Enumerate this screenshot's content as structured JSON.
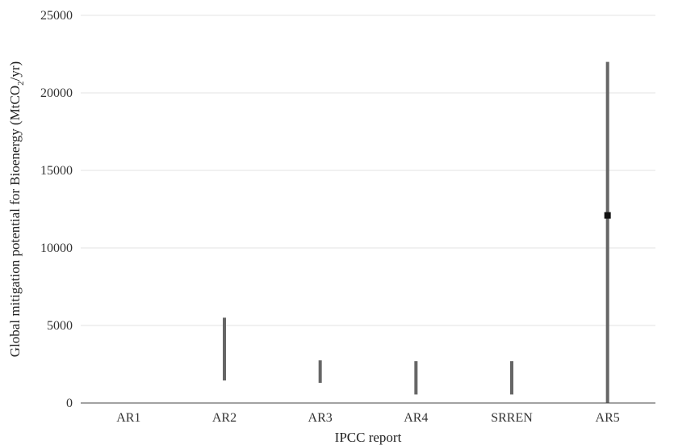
{
  "chart_data": {
    "type": "range",
    "categories": [
      "AR1",
      "AR2",
      "AR3",
      "AR4",
      "SRREN",
      "AR5"
    ],
    "series": [
      {
        "ranges": [
          null,
          [
            1450,
            5500
          ],
          [
            1300,
            2750
          ],
          [
            550,
            2700
          ],
          [
            550,
            2700
          ],
          [
            0,
            22000
          ]
        ],
        "points": [
          null,
          null,
          null,
          null,
          null,
          12100
        ]
      }
    ],
    "xlabel": "IPCC report",
    "ylabel": {
      "prefix": "Global mitigation potential for Bioenergy (MtCO",
      "subscript": "2",
      "suffix": "/yr)"
    },
    "ylim": [
      0,
      25000
    ],
    "yticks": [
      "0",
      "5000",
      "10000",
      "15000",
      "20000",
      "25000"
    ],
    "grid": "horizontal",
    "colors": {
      "range": "#666666",
      "point": "#111111",
      "grid": "#e3e3e3",
      "axis": "#444444"
    }
  }
}
